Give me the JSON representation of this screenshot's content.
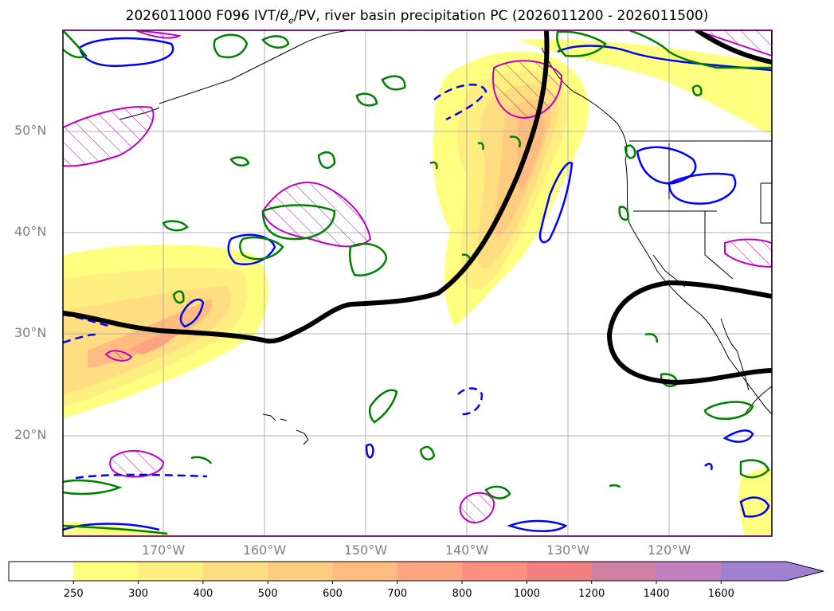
{
  "title_main": "2026011000 F096 IVT/",
  "title_theta": "θ",
  "title_sub": "e",
  "title_rest": "/PV, river basin precipitation PC (2026011200 - 2026011500)",
  "lat_labels": [
    "50°N",
    "40°N",
    "30°N",
    "20°N"
  ],
  "lon_labels": [
    "170°W",
    "160°W",
    "150°W",
    "140°W",
    "130°W",
    "120°W"
  ],
  "colorbar": {
    "ticks": [
      "250",
      "300",
      "400",
      "500",
      "600",
      "700",
      "800",
      "1000",
      "1200",
      "1400",
      "1600"
    ],
    "colors": [
      "#ffffff",
      "#ffff80",
      "#ffee80",
      "#ffdd80",
      "#ffcc80",
      "#ffbb80",
      "#ffa480",
      "#ff9080",
      "#f08080",
      "#d080a0",
      "#c080c0",
      "#a080d0"
    ]
  },
  "colors": {
    "jet": "#000000",
    "pv_contour": "#0000ff",
    "theta_contour": "#008000",
    "basin_hatch": "#c000c0",
    "graticule": "#b0b0b0",
    "coast": "#000000"
  }
}
